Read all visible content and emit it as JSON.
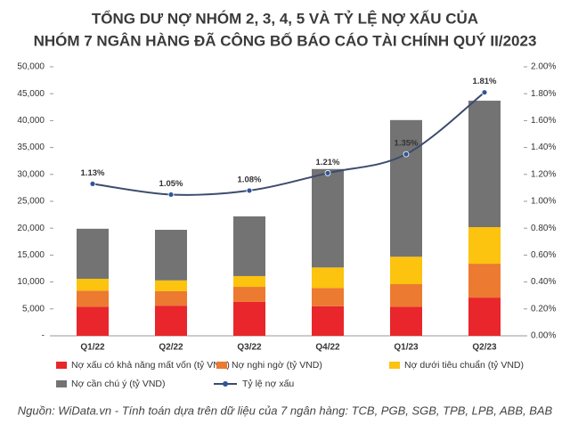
{
  "chart_data": {
    "type": "bar",
    "title": [
      "TỔNG DƯ NỢ NHÓM 2, 3, 4, 5 VÀ TỶ LỆ NỢ XẤU CỦA",
      "NHÓM 7 NGÂN HÀNG ĐÃ CÔNG BỐ BÁO CÁO TÀI CHÍNH QUÝ II/2023"
    ],
    "categories": [
      "Q1/22",
      "Q2/22",
      "Q3/22",
      "Q4/22",
      "Q1/23",
      "Q2/23"
    ],
    "stacked": true,
    "series": [
      {
        "name": "Nợ xấu có khả năng mất vốn (tỷ VND)",
        "color": "#e8262b",
        "values": [
          5400,
          5600,
          6300,
          5500,
          5400,
          7100
        ]
      },
      {
        "name": "Nợ nghi ngờ (tỷ VND)",
        "color": "#ec7a30",
        "values": [
          3000,
          2700,
          2800,
          3400,
          4200,
          6300
        ]
      },
      {
        "name": "Nợ dưới tiêu chuẩn  (tỷ VND)",
        "color": "#fcc30f",
        "values": [
          2200,
          2000,
          2000,
          3800,
          5100,
          6800
        ]
      },
      {
        "name": "Nợ cần chú ý (tỷ VND)",
        "color": "#737373",
        "values": [
          9300,
          9400,
          11100,
          18300,
          25400,
          23500
        ]
      },
      {
        "name": "Tỷ lệ nợ xấu",
        "type": "line",
        "axis": "y2",
        "color": "#3d4b6e",
        "values": [
          1.13,
          1.05,
          1.08,
          1.21,
          1.35,
          1.81
        ],
        "value_labels": [
          "1.13%",
          "1.05%",
          "1.08%",
          "1.21%",
          "1.35%",
          "1.81%"
        ]
      }
    ],
    "ylim": [
      0,
      50000
    ],
    "yticks": [
      {
        "value": 0,
        "label": "-"
      },
      {
        "value": 5000,
        "label": "5,000"
      },
      {
        "value": 10000,
        "label": "10,000"
      },
      {
        "value": 15000,
        "label": "15,000"
      },
      {
        "value": 20000,
        "label": "20,000"
      },
      {
        "value": 25000,
        "label": "25,000"
      },
      {
        "value": 30000,
        "label": "30,000"
      },
      {
        "value": 35000,
        "label": "35,000"
      },
      {
        "value": 40000,
        "label": "40,000"
      },
      {
        "value": 45000,
        "label": "45,000"
      },
      {
        "value": 50000,
        "label": "50,000"
      }
    ],
    "y2lim": [
      0,
      2
    ],
    "y2ticks": [
      {
        "value": 0,
        "label": "0.00%"
      },
      {
        "value": 0.2,
        "label": "0.20%"
      },
      {
        "value": 0.4,
        "label": "0.40%"
      },
      {
        "value": 0.6,
        "label": "0.60%"
      },
      {
        "value": 0.8,
        "label": "0.80%"
      },
      {
        "value": 1.0,
        "label": "1.00%"
      },
      {
        "value": 1.2,
        "label": "1.20%"
      },
      {
        "value": 1.4,
        "label": "1.40%"
      },
      {
        "value": 1.6,
        "label": "1.60%"
      },
      {
        "value": 1.8,
        "label": "1.80%"
      },
      {
        "value": 2.0,
        "label": "2.00%"
      }
    ],
    "source": "Nguồn: WiData.vn - Tính toán dựa trên dữ liệu của 7 ngân hàng: TCB, PGB, SGB, TPB, LPB, ABB, BAB"
  }
}
